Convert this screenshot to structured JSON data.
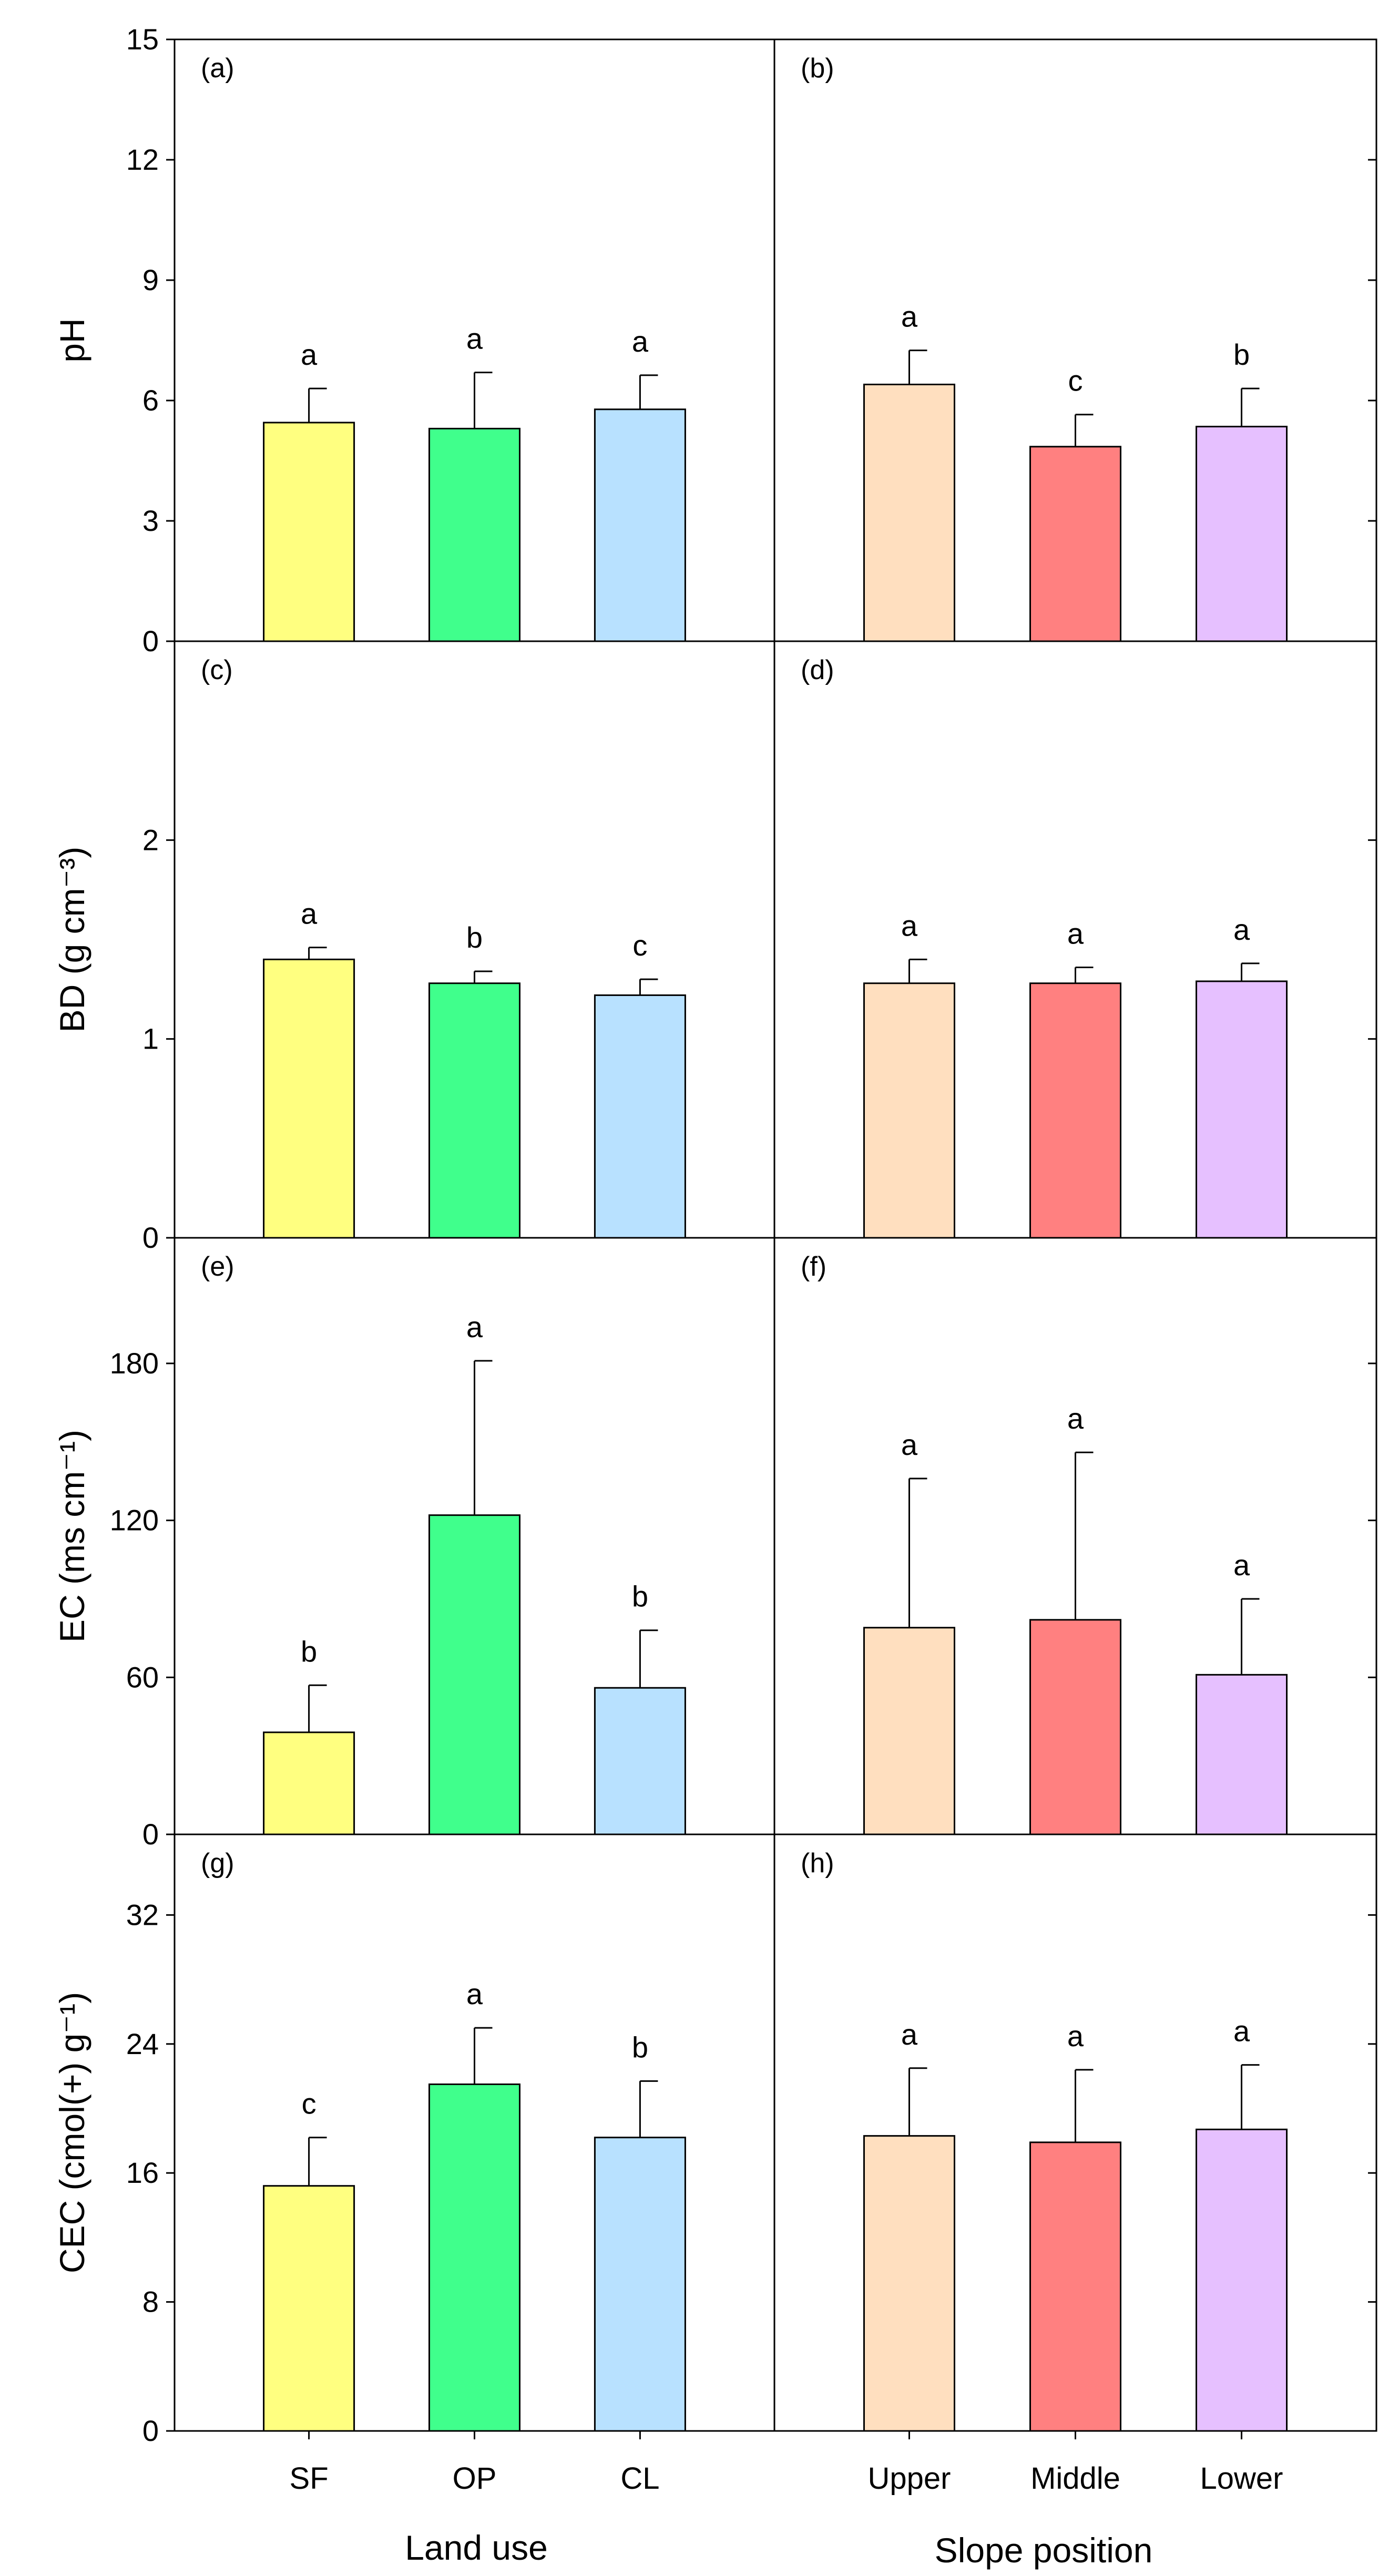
{
  "figure": {
    "x_titles": [
      "Land use",
      "Slope position"
    ]
  },
  "chart_data": [
    {
      "type": "bar",
      "panel": "(a)",
      "xlabel": "",
      "ylabel": "pH",
      "ylim": [
        0,
        15
      ],
      "yticks": [
        0,
        3,
        6,
        9,
        12,
        15
      ],
      "categories": [
        "SF",
        "OP",
        "CL"
      ],
      "values": [
        5.45,
        5.3,
        5.78
      ],
      "errors": [
        0.85,
        1.4,
        0.85
      ],
      "letters": [
        "a",
        "a",
        "a"
      ],
      "colors": [
        "#ffff80",
        "#40ff8c",
        "#b8e1ff"
      ]
    },
    {
      "type": "bar",
      "panel": "(b)",
      "xlabel": "",
      "ylabel": "",
      "ylim": [
        0,
        15
      ],
      "yticks": [
        0,
        3,
        6,
        9,
        12,
        15
      ],
      "categories": [
        "Upper",
        "Middle",
        "Lower"
      ],
      "values": [
        6.4,
        4.85,
        5.35
      ],
      "errors": [
        0.85,
        0.8,
        0.95
      ],
      "letters": [
        "a",
        "c",
        "b"
      ],
      "colors": [
        "#ffdfbf",
        "#ff8080",
        "#e6c0ff"
      ]
    },
    {
      "type": "bar",
      "panel": "(c)",
      "xlabel": "",
      "ylabel": "BD (g cm⁻³)",
      "ylim": [
        0,
        3
      ],
      "yticks": [
        0,
        1,
        2
      ],
      "categories": [
        "SF",
        "OP",
        "CL"
      ],
      "values": [
        1.4,
        1.28,
        1.22
      ],
      "errors": [
        0.06,
        0.06,
        0.08
      ],
      "letters": [
        "a",
        "b",
        "c"
      ],
      "colors": [
        "#ffff80",
        "#40ff8c",
        "#b8e1ff"
      ]
    },
    {
      "type": "bar",
      "panel": "(d)",
      "xlabel": "",
      "ylabel": "",
      "ylim": [
        0,
        3
      ],
      "yticks": [
        0,
        1,
        2
      ],
      "categories": [
        "Upper",
        "Middle",
        "Lower"
      ],
      "values": [
        1.28,
        1.28,
        1.29
      ],
      "errors": [
        0.12,
        0.08,
        0.09
      ],
      "letters": [
        "a",
        "a",
        "a"
      ],
      "colors": [
        "#ffdfbf",
        "#ff8080",
        "#e6c0ff"
      ]
    },
    {
      "type": "bar",
      "panel": "(e)",
      "xlabel": "",
      "ylabel": "EC (ms cm⁻¹)",
      "ylim": [
        0,
        228
      ],
      "yticks": [
        0,
        60,
        120,
        180
      ],
      "categories": [
        "SF",
        "OP",
        "CL"
      ],
      "values": [
        39,
        122,
        56
      ],
      "errors": [
        18,
        59,
        22
      ],
      "letters": [
        "b",
        "a",
        "b"
      ],
      "colors": [
        "#ffff80",
        "#40ff8c",
        "#b8e1ff"
      ]
    },
    {
      "type": "bar",
      "panel": "(f)",
      "xlabel": "",
      "ylabel": "",
      "ylim": [
        0,
        228
      ],
      "yticks": [
        0,
        60,
        120,
        180
      ],
      "categories": [
        "Upper",
        "Middle",
        "Lower"
      ],
      "values": [
        79,
        82,
        61
      ],
      "errors": [
        57,
        64,
        29
      ],
      "letters": [
        "a",
        "a",
        "a"
      ],
      "colors": [
        "#ffdfbf",
        "#ff8080",
        "#e6c0ff"
      ]
    },
    {
      "type": "bar",
      "panel": "(g)",
      "xlabel": "Land use",
      "ylabel": "CEC (cmol(+)    g⁻¹)",
      "ylim": [
        0,
        37
      ],
      "yticks": [
        0,
        8,
        16,
        24,
        32
      ],
      "categories": [
        "SF",
        "OP",
        "CL"
      ],
      "values": [
        15.2,
        21.5,
        18.2
      ],
      "errors": [
        3.0,
        3.5,
        3.5
      ],
      "letters": [
        "c",
        "a",
        "b"
      ],
      "colors": [
        "#ffff80",
        "#40ff8c",
        "#b8e1ff"
      ]
    },
    {
      "type": "bar",
      "panel": "(h)",
      "xlabel": "Slope position",
      "ylabel": "",
      "ylim": [
        0,
        37
      ],
      "yticks": [
        0,
        8,
        16,
        24,
        32
      ],
      "categories": [
        "Upper",
        "Middle",
        "Lower"
      ],
      "values": [
        18.3,
        17.9,
        18.7
      ],
      "errors": [
        4.2,
        4.5,
        4.0
      ],
      "letters": [
        "a",
        "a",
        "a"
      ],
      "colors": [
        "#ffdfbf",
        "#ff8080",
        "#e6c0ff"
      ]
    }
  ]
}
